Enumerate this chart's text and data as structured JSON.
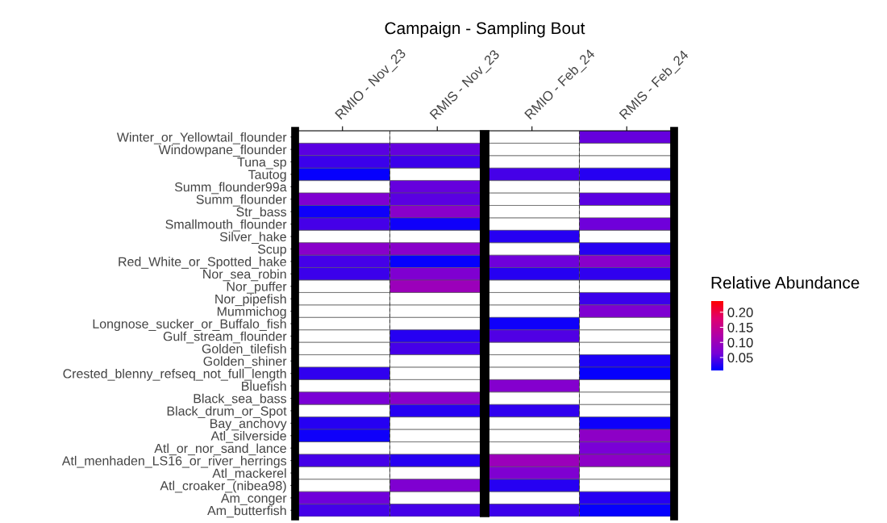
{
  "chart_data": {
    "type": "heatmap",
    "xlabel": "Campaign - Sampling Bout",
    "clabel": "Relative Abundance",
    "categories": [
      "RMIO - Nov_23",
      "RMIS - Nov_23",
      "RMIO - Feb_24",
      "RMIS - Feb_24"
    ],
    "y_categories": [
      "Winter_or_Yellowtail_flounder",
      "Windowpane_flounder",
      "Tuna_sp",
      "Tautog",
      "Summ_flounder99a",
      "Summ_flounder",
      "Str_bass",
      "Smallmouth_flounder",
      "Silver_hake",
      "Scup",
      "Red_White_or_Spotted_hake",
      "Nor_sea_robin",
      "Nor_puffer",
      "Nor_pipefish",
      "Mummichog",
      "Longnose_sucker_or_Buffalo_fish",
      "Gulf_stream_flounder",
      "Golden_tilefish",
      "Golden_shiner",
      "Crested_blenny_refseq_not_full_length",
      "Bluefish",
      "Black_sea_bass",
      "Black_drum_or_Spot",
      "Bay_anchovy",
      "Atl_silverside",
      "Atl_or_nor_sand_lance",
      "Atl_menhaden_LS16_or_river_herrings",
      "Atl_mackerel",
      "Atl_croaker_(nibea98)",
      "Am_conger",
      "Am_butterfish"
    ],
    "cells": [
      [
        null,
        null,
        null,
        0.055
      ],
      [
        0.05,
        0.055,
        null,
        null
      ],
      [
        0.035,
        0.035,
        null,
        null
      ],
      [
        0.01,
        null,
        0.04,
        0.025
      ],
      [
        null,
        0.055,
        null,
        null
      ],
      [
        0.07,
        0.05,
        null,
        0.05
      ],
      [
        0.015,
        0.08,
        null,
        null
      ],
      [
        0.04,
        0.015,
        null,
        0.06
      ],
      [
        null,
        null,
        0.025,
        null
      ],
      [
        0.08,
        0.08,
        null,
        0.025
      ],
      [
        0.04,
        0.01,
        0.06,
        0.08
      ],
      [
        0.035,
        0.07,
        0.025,
        0.03
      ],
      [
        null,
        0.1,
        null,
        null
      ],
      [
        null,
        null,
        null,
        0.035
      ],
      [
        null,
        null,
        null,
        0.07
      ],
      [
        null,
        null,
        0.015,
        null
      ],
      [
        null,
        0.025,
        0.045,
        null
      ],
      [
        null,
        0.04,
        null,
        null
      ],
      [
        null,
        null,
        null,
        0.02
      ],
      [
        0.03,
        null,
        null,
        0.01
      ],
      [
        null,
        null,
        0.075,
        null
      ],
      [
        0.065,
        0.08,
        null,
        null
      ],
      [
        null,
        0.025,
        0.03,
        null
      ],
      [
        0.025,
        null,
        null,
        0.015
      ],
      [
        0.015,
        null,
        null,
        0.085
      ],
      [
        null,
        null,
        null,
        0.065
      ],
      [
        0.04,
        0.025,
        0.1,
        0.085
      ],
      [
        null,
        null,
        0.07,
        null
      ],
      [
        null,
        0.07,
        0.025,
        null
      ],
      [
        0.06,
        null,
        null,
        0.025
      ],
      [
        0.04,
        0.04,
        0.035,
        0.01
      ]
    ],
    "clim": [
      0.007,
      0.237
    ],
    "cticks": [
      0.05,
      {
        "value": 0.1,
        "label": "0.10"
      },
      0.15,
      {
        "value": 0.2,
        "label": "0.20"
      }
    ]
  }
}
